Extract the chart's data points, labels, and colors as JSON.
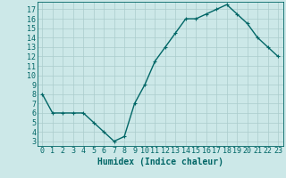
{
  "x": [
    0,
    1,
    2,
    3,
    4,
    5,
    6,
    7,
    8,
    9,
    10,
    11,
    12,
    13,
    14,
    15,
    16,
    17,
    18,
    19,
    20,
    21,
    22,
    23
  ],
  "y": [
    8,
    6,
    6,
    6,
    6,
    5,
    4,
    3,
    3.5,
    7,
    9,
    11.5,
    13,
    14.5,
    16,
    16,
    16.5,
    17,
    17.5,
    16.5,
    15.5,
    14,
    13,
    12
  ],
  "line_color": "#006666",
  "marker": "+",
  "marker_size": 3,
  "bg_color": "#cce8e8",
  "grid_color": "#aacccc",
  "xlabel": "Humidex (Indice chaleur)",
  "xlim": [
    -0.5,
    23.5
  ],
  "ylim": [
    2.5,
    17.8
  ],
  "yticks": [
    3,
    4,
    5,
    6,
    7,
    8,
    9,
    10,
    11,
    12,
    13,
    14,
    15,
    16,
    17
  ],
  "xticks": [
    0,
    1,
    2,
    3,
    4,
    5,
    6,
    7,
    8,
    9,
    10,
    11,
    12,
    13,
    14,
    15,
    16,
    17,
    18,
    19,
    20,
    21,
    22,
    23
  ],
  "tick_color": "#006666",
  "label_color": "#006666",
  "font_size": 6,
  "xlabel_fontsize": 7,
  "line_width": 1.0,
  "axis_color": "#006666"
}
